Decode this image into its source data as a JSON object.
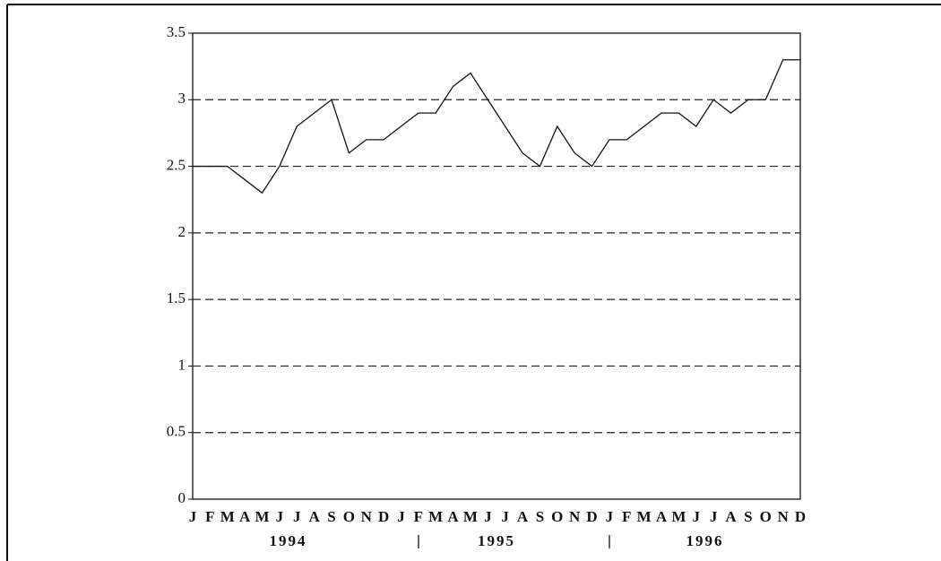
{
  "chart_data": {
    "type": "line",
    "categories": [
      "J",
      "F",
      "M",
      "A",
      "M",
      "J",
      "J",
      "A",
      "S",
      "O",
      "N",
      "D",
      "J",
      "F",
      "M",
      "A",
      "M",
      "J",
      "J",
      "A",
      "S",
      "O",
      "N",
      "D",
      "J",
      "F",
      "M",
      "A",
      "M",
      "J",
      "J",
      "A",
      "S",
      "O",
      "N",
      "D"
    ],
    "year_groups": [
      "1994",
      "1995",
      "1996"
    ],
    "series": [
      {
        "color": "#111111",
        "values": [
          2.5,
          2.5,
          2.5,
          2.4,
          2.3,
          2.5,
          2.8,
          2.9,
          3.0,
          2.6,
          2.7,
          2.7,
          2.8,
          2.9,
          2.9,
          3.1,
          3.2,
          3.0,
          2.8,
          2.6,
          2.5,
          2.8,
          2.6,
          2.5,
          2.7,
          2.7,
          2.8,
          2.9,
          2.9,
          2.8,
          3.0,
          2.9,
          3.0,
          3.0,
          3.3,
          3.3
        ]
      }
    ],
    "ylim": [
      0,
      3.5
    ],
    "yticks": [
      0,
      0.5,
      1,
      1.5,
      2,
      2.5,
      3,
      3.5
    ],
    "grid": true
  }
}
